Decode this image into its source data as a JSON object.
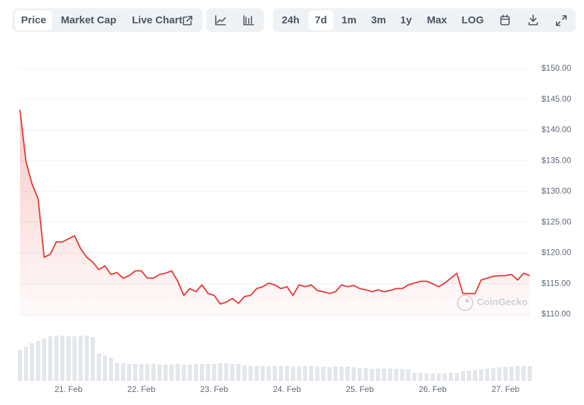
{
  "toolbar": {
    "price": "Price",
    "market_cap": "Market Cap",
    "live_chart": "Live Chart",
    "ranges": [
      "24h",
      "7d",
      "1m",
      "3m",
      "1y",
      "Max",
      "LOG"
    ]
  },
  "chart_data": {
    "type": "line",
    "color": "#e5403a",
    "grid": true,
    "watermark": "CoinGecko",
    "ylim": [
      110,
      150
    ],
    "yticks": [
      {
        "value": 110,
        "label": "$110.00"
      },
      {
        "value": 115,
        "label": "$115.00"
      },
      {
        "value": 120,
        "label": "$120.00"
      },
      {
        "value": 125,
        "label": "$125.00"
      },
      {
        "value": 130,
        "label": "$130.00"
      },
      {
        "value": 135,
        "label": "$135.00"
      },
      {
        "value": 140,
        "label": "$140.00"
      },
      {
        "value": 145,
        "label": "$145.00"
      },
      {
        "value": 150,
        "label": "$150.00"
      }
    ],
    "categories": [
      null,
      null,
      null,
      null,
      null,
      null,
      null,
      null,
      "21. Feb",
      null,
      null,
      null,
      null,
      null,
      null,
      null,
      null,
      null,
      null,
      null,
      "22. Feb",
      null,
      null,
      null,
      null,
      null,
      null,
      null,
      null,
      null,
      null,
      null,
      "23. Feb",
      null,
      null,
      null,
      null,
      null,
      null,
      null,
      null,
      null,
      null,
      null,
      "24. Feb",
      null,
      null,
      null,
      null,
      null,
      null,
      null,
      null,
      null,
      null,
      null,
      "25. Feb",
      null,
      null,
      null,
      null,
      null,
      null,
      null,
      null,
      null,
      null,
      null,
      "26. Feb",
      null,
      null,
      null,
      null,
      null,
      null,
      null,
      null,
      null,
      null,
      null,
      "27. Feb",
      null,
      null,
      null,
      null
    ],
    "values": [
      143.3,
      134.9,
      131.2,
      128.8,
      119.3,
      119.8,
      121.8,
      121.8,
      122.3,
      122.8,
      120.7,
      119.3,
      118.5,
      117.3,
      117.9,
      116.5,
      116.8,
      115.9,
      116.3,
      117.1,
      117.1,
      115.9,
      115.9,
      116.5,
      116.7,
      117.1,
      115.4,
      113.1,
      114.2,
      113.7,
      114.8,
      113.4,
      113.1,
      111.7,
      112.0,
      112.6,
      111.8,
      112.9,
      113.1,
      114.2,
      114.5,
      115.1,
      114.8,
      114.2,
      114.5,
      113.1,
      114.8,
      114.5,
      114.8,
      113.9,
      113.7,
      113.4,
      113.7,
      114.8,
      114.5,
      114.7,
      114.2,
      114.0,
      113.7,
      114.0,
      113.7,
      113.9,
      114.2,
      114.2,
      114.8,
      115.1,
      115.4,
      115.4,
      115.0,
      114.5,
      115.1,
      115.9,
      116.7,
      113.4,
      113.4,
      113.4,
      115.6,
      115.9,
      116.2,
      116.3,
      116.3,
      116.5,
      115.6,
      116.7,
      116.3
    ],
    "volume_color": "#e3e6ea",
    "volume_ylim": [
      0,
      70
    ],
    "volume_values": [
      45,
      50,
      55,
      58,
      62,
      65,
      66,
      66,
      65,
      65,
      66,
      66,
      64,
      40,
      37,
      34,
      26,
      26,
      25,
      25,
      25,
      25,
      25,
      24,
      24,
      24,
      25,
      24,
      24,
      25,
      25,
      25,
      25,
      26,
      26,
      25,
      25,
      23,
      22,
      22,
      22,
      21,
      22,
      22,
      22,
      21,
      21,
      22,
      22,
      21,
      21,
      20,
      21,
      21,
      21,
      20,
      19,
      19,
      18,
      18,
      18,
      18,
      18,
      17,
      17,
      12,
      12,
      11,
      11,
      11,
      11,
      12,
      12,
      14,
      15,
      16,
      17,
      18,
      19,
      20,
      21,
      21,
      22,
      22,
      22
    ]
  }
}
